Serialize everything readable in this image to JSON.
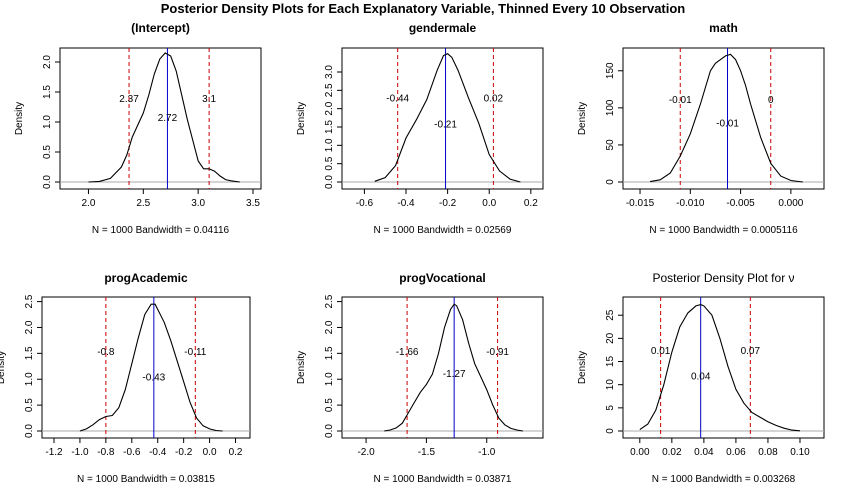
{
  "main_title": "Posterior Density Plots for Each Explanatory Variable, Thinned Every 10 Observation",
  "chart_data": [
    {
      "type": "line",
      "title": "(Intercept)",
      "ylabel": "Density",
      "xlabel": "N = 1000   Bandwidth = 0.04116",
      "xlim": [
        1.85,
        3.5
      ],
      "ylim": [
        0,
        2.2
      ],
      "xticks": [
        2.0,
        2.5,
        3.0,
        3.5
      ],
      "xtick_labels": [
        "2.0",
        "2.5",
        "3.0",
        "3.5"
      ],
      "yticks": [
        0.0,
        0.5,
        1.0,
        1.5,
        2.0
      ],
      "ytick_labels": [
        "0.0",
        "0.5",
        "1.0",
        "1.5",
        "2.0"
      ],
      "lower": 2.37,
      "upper": 3.1,
      "mean": 2.72,
      "lower_label": "2.37",
      "upper_label": "3.1",
      "mean_label": "2.72",
      "lower_label_y": 1.4,
      "upper_label_y": 1.4,
      "mean_label_y": 1.08,
      "x": [
        2.0,
        2.1,
        2.2,
        2.3,
        2.35,
        2.4,
        2.45,
        2.5,
        2.55,
        2.6,
        2.65,
        2.7,
        2.75,
        2.8,
        2.85,
        2.9,
        2.95,
        3.0,
        3.05,
        3.1,
        3.15,
        3.2,
        3.25,
        3.3,
        3.38
      ],
      "y": [
        0.0,
        0.01,
        0.06,
        0.25,
        0.45,
        0.75,
        0.95,
        1.15,
        1.45,
        1.8,
        2.05,
        2.15,
        2.1,
        1.85,
        1.45,
        1.05,
        0.7,
        0.35,
        0.22,
        0.22,
        0.18,
        0.1,
        0.04,
        0.02,
        0.0
      ]
    },
    {
      "type": "line",
      "title": "gendermale",
      "ylabel": "Density",
      "xlabel": "N = 1000   Bandwidth = 0.02569",
      "xlim": [
        -0.65,
        0.22
      ],
      "ylim": [
        0,
        3.6
      ],
      "xticks": [
        -0.6,
        -0.4,
        -0.2,
        0.0,
        0.2
      ],
      "xtick_labels": [
        "-0.6",
        "-0.4",
        "-0.2",
        "0.0",
        "0.2"
      ],
      "yticks": [
        0.0,
        0.5,
        1.0,
        1.5,
        2.0,
        2.5,
        3.0
      ],
      "ytick_labels": [
        "0.0",
        "0.5",
        "1.0",
        "1.5",
        "2.0",
        "2.5",
        "3.0"
      ],
      "lower": -0.44,
      "upper": 0.02,
      "mean": -0.21,
      "lower_label": "-0.44",
      "upper_label": "0.02",
      "mean_label": "-0.21",
      "lower_label_y": 2.3,
      "upper_label_y": 2.3,
      "mean_label_y": 1.6,
      "x": [
        -0.55,
        -0.5,
        -0.45,
        -0.4,
        -0.35,
        -0.3,
        -0.25,
        -0.22,
        -0.2,
        -0.18,
        -0.15,
        -0.1,
        -0.05,
        0.0,
        0.05,
        0.1,
        0.15
      ],
      "y": [
        0.02,
        0.12,
        0.45,
        1.2,
        1.7,
        2.25,
        3.05,
        3.45,
        3.5,
        3.4,
        3.05,
        2.3,
        1.6,
        0.75,
        0.3,
        0.08,
        0.0
      ]
    },
    {
      "type": "line",
      "title": "math",
      "ylabel": "Density",
      "xlabel": "N = 1000   Bandwidth = 0.0005116",
      "xlim": [
        -0.0155,
        0.0025
      ],
      "ylim": [
        0,
        178
      ],
      "xticks": [
        -0.015,
        -0.01,
        -0.005,
        0.0
      ],
      "xtick_labels": [
        "-0.015",
        "-0.010",
        "-0.005",
        "0.000"
      ],
      "yticks": [
        0,
        50,
        100,
        150
      ],
      "ytick_labels": [
        "0",
        "50",
        "100",
        "150"
      ],
      "lower": -0.011,
      "upper": -0.002,
      "mean": -0.0063,
      "lower_label": "-0.01",
      "upper_label": "0",
      "mean_label": "-0.01",
      "lower_label_y": 112,
      "upper_label_y": 112,
      "mean_label_y": 80,
      "x": [
        -0.014,
        -0.013,
        -0.012,
        -0.011,
        -0.01,
        -0.009,
        -0.008,
        -0.0075,
        -0.007,
        -0.0065,
        -0.006,
        -0.0055,
        -0.005,
        -0.0045,
        -0.004,
        -0.003,
        -0.002,
        -0.001,
        0.0,
        0.0012
      ],
      "y": [
        0.5,
        3,
        12,
        35,
        65,
        105,
        150,
        160,
        165,
        170,
        172,
        165,
        150,
        130,
        105,
        60,
        25,
        8,
        2,
        0
      ]
    },
    {
      "type": "line",
      "title": "progAcademic",
      "ylabel": "Density",
      "xlabel": "N = 1000   Bandwidth = 0.03815",
      "xlim": [
        -1.2,
        0.25
      ],
      "ylim": [
        0,
        2.55
      ],
      "xticks": [
        -1.2,
        -1.0,
        -0.8,
        -0.6,
        -0.4,
        -0.2,
        0.0,
        0.2
      ],
      "xtick_labels": [
        "-1.2",
        "-1.0",
        "-0.8",
        "-0.6",
        "-0.4",
        "-0.2",
        "0.0",
        "0.2"
      ],
      "yticks": [
        0.0,
        0.5,
        1.0,
        1.5,
        2.0,
        2.5
      ],
      "ytick_labels": [
        "0.0",
        "0.5",
        "1.0",
        "1.5",
        "2.0",
        "2.5"
      ],
      "lower": -0.8,
      "upper": -0.11,
      "mean": -0.43,
      "lower_label": "-0.8",
      "upper_label": "-0.11",
      "mean_label": "-0.43",
      "lower_label_y": 1.55,
      "upper_label_y": 1.55,
      "mean_label_y": 1.05,
      "x": [
        -1.0,
        -0.95,
        -0.9,
        -0.85,
        -0.8,
        -0.75,
        -0.7,
        -0.65,
        -0.6,
        -0.55,
        -0.5,
        -0.45,
        -0.42,
        -0.4,
        -0.35,
        -0.3,
        -0.25,
        -0.2,
        -0.15,
        -0.1,
        -0.05,
        0.0,
        0.05,
        0.1
      ],
      "y": [
        0.0,
        0.04,
        0.12,
        0.22,
        0.28,
        0.3,
        0.45,
        0.8,
        1.3,
        1.8,
        2.25,
        2.45,
        2.45,
        2.35,
        2.1,
        1.75,
        1.35,
        0.95,
        0.55,
        0.25,
        0.1,
        0.04,
        0.01,
        0.0
      ]
    },
    {
      "type": "line",
      "title": "progVocational",
      "ylabel": "Density",
      "xlabel": "N = 1000   Bandwidth = 0.03871",
      "xlim": [
        -2.1,
        -0.6
      ],
      "ylim": [
        0,
        2.55
      ],
      "xticks": [
        -2.0,
        -1.5,
        -1.0
      ],
      "xtick_labels": [
        "-2.0",
        "-1.5",
        "-1.0"
      ],
      "yticks": [
        0.0,
        0.5,
        1.0,
        1.5,
        2.0,
        2.5
      ],
      "ytick_labels": [
        "0.0",
        "0.5",
        "1.0",
        "1.5",
        "2.0",
        "2.5"
      ],
      "lower": -1.66,
      "upper": -0.91,
      "mean": -1.27,
      "lower_label": "-1.66",
      "upper_label": "-0.91",
      "mean_label": "-1.27",
      "lower_label_y": 1.55,
      "upper_label_y": 1.55,
      "mean_label_y": 1.12,
      "x": [
        -1.85,
        -1.8,
        -1.75,
        -1.7,
        -1.65,
        -1.6,
        -1.55,
        -1.5,
        -1.45,
        -1.4,
        -1.35,
        -1.3,
        -1.27,
        -1.25,
        -1.2,
        -1.15,
        -1.1,
        -1.05,
        -1.0,
        -0.95,
        -0.9,
        -0.85,
        -0.8,
        -0.75,
        -0.7
      ],
      "y": [
        0.0,
        0.02,
        0.06,
        0.15,
        0.35,
        0.55,
        0.75,
        0.9,
        1.1,
        1.5,
        2.0,
        2.35,
        2.45,
        2.42,
        2.15,
        1.7,
        1.3,
        1.05,
        0.8,
        0.5,
        0.25,
        0.12,
        0.05,
        0.02,
        0.0
      ]
    },
    {
      "type": "line",
      "title": "Posterior Density Plot for ν",
      "title_bold": false,
      "ylabel": "Density",
      "xlabel": "N = 1000   Bandwidth = 0.003268",
      "xlim": [
        -0.003,
        0.11
      ],
      "ylim": [
        0,
        28.5
      ],
      "xticks": [
        0.0,
        0.02,
        0.04,
        0.06,
        0.08,
        0.1
      ],
      "xtick_labels": [
        "0.00",
        "0.02",
        "0.04",
        "0.06",
        "0.08",
        "0.10"
      ],
      "yticks": [
        0,
        5,
        10,
        15,
        20,
        25
      ],
      "ytick_labels": [
        "0",
        "5",
        "10",
        "15",
        "20",
        "25"
      ],
      "lower": 0.013,
      "upper": 0.069,
      "mean": 0.038,
      "lower_label": "0.01",
      "upper_label": "0.07",
      "mean_label": "0.04",
      "lower_label_y": 17.5,
      "upper_label_y": 17.5,
      "mean_label_y": 12,
      "x": [
        0.0,
        0.005,
        0.01,
        0.015,
        0.02,
        0.025,
        0.03,
        0.035,
        0.038,
        0.04,
        0.045,
        0.05,
        0.055,
        0.06,
        0.065,
        0.07,
        0.075,
        0.08,
        0.085,
        0.09,
        0.095,
        0.1
      ],
      "y": [
        0.3,
        1.5,
        4.5,
        10,
        17,
        22.5,
        25.5,
        27,
        27.3,
        27,
        25,
        20,
        14,
        9,
        6,
        4,
        3,
        2,
        1.2,
        0.6,
        0.2,
        0.05
      ]
    }
  ]
}
